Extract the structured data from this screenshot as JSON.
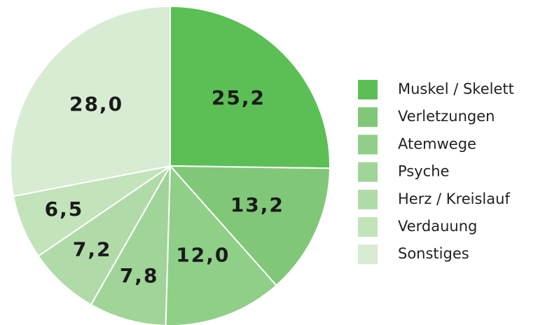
{
  "chart_data": {
    "type": "pie",
    "categories": [
      "Muskel / Skelett",
      "Verletzungen",
      "Atemwege",
      "Psyche",
      "Herz / Kreislauf",
      "Verdauung",
      "Sonstiges"
    ],
    "values": [
      25.2,
      13.2,
      12.0,
      7.8,
      7.2,
      6.5,
      28.0
    ],
    "value_labels": [
      "25,2",
      "13,2",
      "12,0",
      "7,8",
      "7,2",
      "6,5",
      "28,0"
    ],
    "colors": [
      "#5cbf55",
      "#80c878",
      "#8fcf87",
      "#a0d498",
      "#b0dba8",
      "#c3e3bb",
      "#d8ebd3"
    ],
    "legend": "right"
  }
}
